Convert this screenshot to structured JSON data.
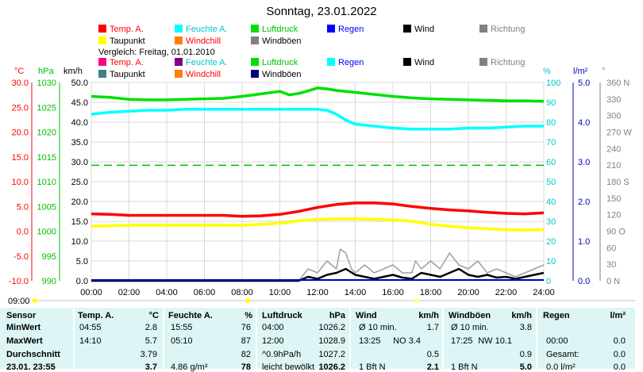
{
  "title": "Sonntag, 23.01.2022",
  "legend_top": [
    {
      "label": "Temp. A.",
      "color": "#ff0000",
      "text_color": "#ff0000"
    },
    {
      "label": "Feuchte A.",
      "color": "#00ffff",
      "text_color": "#00c8c8"
    },
    {
      "label": "Luftdruck",
      "color": "#00e000",
      "text_color": "#00c000"
    },
    {
      "label": "Regen",
      "color": "#0000ff",
      "text_color": "#0000ff"
    },
    {
      "label": "Wind",
      "color": "#000000",
      "text_color": "#000000"
    },
    {
      "label": "Richtung",
      "color": "#808080",
      "text_color": "#808080"
    },
    {
      "label": "Taupunkt",
      "color": "#ffff00",
      "text_color": "#000000"
    },
    {
      "label": "Windchill",
      "color": "#ff8000",
      "text_color": "#ff0000"
    },
    {
      "label": "Windböen",
      "color": "#808080",
      "text_color": "#000000"
    }
  ],
  "compare_label": "Vergleich: Freitag, 01.01.2010",
  "legend_compare": [
    {
      "label": "Temp. A.",
      "color": "#ff0080",
      "text_color": "#ff0000"
    },
    {
      "label": "Feuchte A.",
      "color": "#800080",
      "text_color": "#00c8c8"
    },
    {
      "label": "Luftdruck",
      "color": "#00e000",
      "text_color": "#00c000"
    },
    {
      "label": "Regen",
      "color": "#00ffff",
      "text_color": "#0000ff"
    },
    {
      "label": "Wind",
      "color": "#000000",
      "text_color": "#000000"
    },
    {
      "label": "Richtung",
      "color": "#808080",
      "text_color": "#808080"
    },
    {
      "label": "Taupunkt",
      "color": "#408080",
      "text_color": "#000000"
    },
    {
      "label": "Windchill",
      "color": "#ff8000",
      "text_color": "#ff0000"
    },
    {
      "label": "Windböen",
      "color": "#000080",
      "text_color": "#000000"
    }
  ],
  "axis_units": {
    "temp": "°C",
    "press": "hPa",
    "wind": "km/h",
    "hum": "%",
    "rain": "l/m²",
    "dir": "°"
  },
  "timeline_label": "09:00",
  "chart_data": {
    "type": "line",
    "x_ticks": [
      "00:00",
      "02:00",
      "04:00",
      "06:00",
      "08:00",
      "10:00",
      "12:00",
      "14:00",
      "16:00",
      "18:00",
      "20:00",
      "22:00",
      "24:00"
    ],
    "xlim": [
      0,
      24
    ],
    "axes": {
      "temp": {
        "ticks": [
          "30.0",
          "25.0",
          "20.0",
          "15.0",
          "10.0",
          "5.0",
          "0.0",
          "-5.0",
          "-10.0"
        ],
        "ylim": [
          -10,
          30
        ]
      },
      "press": {
        "ticks": [
          "1030",
          "1025",
          "1020",
          "1015",
          "1010",
          "1005",
          "1000",
          "995",
          "990"
        ],
        "ylim": [
          990,
          1030
        ]
      },
      "wind": {
        "ticks": [
          "50.0",
          "45.0",
          "40.0",
          "35.0",
          "30.0",
          "25.0",
          "20.0",
          "15.0",
          "10.0",
          "5.0",
          "0.0"
        ],
        "ylim": [
          0,
          50
        ]
      },
      "hum": {
        "ticks": [
          "100",
          "90",
          "80",
          "70",
          "60",
          "50",
          "40",
          "30",
          "20",
          "10",
          "0"
        ],
        "ylim": [
          0,
          100
        ]
      },
      "rain": {
        "ticks": [
          "5.0",
          "4.0",
          "3.0",
          "2.0",
          "1.0",
          "0.0"
        ],
        "ylim": [
          0,
          5
        ]
      },
      "dir": {
        "ticks": [
          "360 N",
          "330",
          "300",
          "270 W",
          "240",
          "210",
          "180 S",
          "150",
          "120",
          "90 O",
          "60",
          "30",
          "0 N"
        ],
        "ylim": [
          0,
          360
        ]
      }
    },
    "series": [
      {
        "name": "Luftdruck",
        "axis": "press",
        "color": "#00e000",
        "x": [
          0,
          1,
          2,
          3,
          4,
          5,
          6,
          7,
          8,
          9,
          10,
          10.5,
          11,
          11.5,
          12,
          12.5,
          13,
          14,
          15,
          16,
          17,
          18,
          19,
          20,
          21,
          22,
          23,
          24
        ],
        "y": [
          1027.2,
          1027.0,
          1026.6,
          1026.5,
          1026.5,
          1026.6,
          1026.7,
          1026.8,
          1027.2,
          1027.7,
          1028.2,
          1027.5,
          1027.8,
          1028.3,
          1028.9,
          1028.7,
          1028.4,
          1028.0,
          1027.6,
          1027.2,
          1026.9,
          1026.7,
          1026.6,
          1026.5,
          1026.4,
          1026.3,
          1026.3,
          1026.2
        ]
      },
      {
        "name": "Feuchte A.",
        "axis": "hum",
        "color": "#00ffff",
        "x": [
          0,
          1,
          2,
          3,
          4,
          5,
          6,
          7,
          8,
          9,
          10,
          11,
          12,
          12.5,
          13,
          13.5,
          14,
          15,
          16,
          17,
          18,
          19,
          20,
          21,
          22,
          23,
          24
        ],
        "y": [
          84,
          85,
          85.5,
          86,
          86,
          86.5,
          86.5,
          86.5,
          86.5,
          86.5,
          86.5,
          86.5,
          86.5,
          86,
          84,
          81,
          79,
          78,
          77,
          76.5,
          76.5,
          76.5,
          77,
          77,
          77.5,
          78,
          78
        ]
      },
      {
        "name": "Temp. A.",
        "axis": "temp",
        "color": "#ff0000",
        "x": [
          0,
          1,
          2,
          3,
          4,
          5,
          6,
          7,
          8,
          9,
          10,
          11,
          12,
          13,
          14,
          15,
          16,
          17,
          18,
          19,
          20,
          21,
          22,
          23,
          24
        ],
        "y": [
          3.5,
          3.4,
          3.2,
          3.2,
          3.2,
          3.2,
          3.2,
          3.2,
          3.0,
          3.1,
          3.4,
          4.0,
          4.8,
          5.4,
          5.7,
          5.7,
          5.5,
          5.0,
          4.6,
          4.3,
          4.1,
          3.8,
          3.6,
          3.5,
          3.7
        ]
      },
      {
        "name": "Taupunkt",
        "axis": "temp",
        "color": "#ffff00",
        "x": [
          0,
          1,
          2,
          3,
          4,
          5,
          6,
          7,
          8,
          9,
          10,
          11,
          12,
          13,
          14,
          15,
          16,
          17,
          18,
          19,
          20,
          21,
          22,
          23,
          24
        ],
        "y": [
          1.0,
          1.1,
          1.2,
          1.2,
          1.2,
          1.2,
          1.2,
          1.2,
          1.2,
          1.4,
          1.6,
          2.1,
          2.4,
          2.5,
          2.5,
          2.4,
          2.3,
          2.0,
          1.4,
          1.0,
          0.7,
          0.5,
          0.3,
          0.2,
          0.3
        ]
      },
      {
        "name": "Windböen",
        "axis": "wind",
        "color": "#a0a0a0",
        "x": [
          0,
          11,
          11.5,
          12,
          12.5,
          13,
          13.2,
          13.5,
          13.8,
          14,
          14.5,
          15,
          15.5,
          16,
          16.5,
          17,
          17.2,
          17.5,
          18,
          18.5,
          19,
          19.5,
          20,
          20.5,
          21,
          21.5,
          22,
          22.5,
          23,
          23.5,
          24
        ],
        "y": [
          0,
          0,
          3,
          2,
          5,
          3,
          8,
          7,
          3,
          2,
          4,
          2,
          3,
          4,
          2,
          2,
          5,
          3,
          5,
          3,
          7,
          4,
          3,
          5,
          2,
          3,
          2,
          1,
          2,
          3,
          4
        ]
      },
      {
        "name": "Wind",
        "axis": "wind",
        "color": "#000000",
        "x": [
          0,
          11,
          11.5,
          12,
          12.5,
          13,
          13.5,
          14,
          14.5,
          15,
          15.5,
          16,
          16.5,
          17,
          17.5,
          18,
          18.5,
          19,
          19.5,
          20,
          20.5,
          21,
          21.5,
          22,
          22.5,
          23,
          23.5,
          24
        ],
        "y": [
          0,
          0,
          1,
          0.5,
          1.5,
          2,
          3,
          1.5,
          1,
          0.5,
          1,
          1.5,
          0.8,
          0.5,
          2,
          1.5,
          1,
          2,
          3,
          1.5,
          1,
          1.5,
          0.8,
          1,
          0.5,
          1,
          1.5,
          2
        ]
      }
    ],
    "reference_line": {
      "name": "Luftdruck Vergleich",
      "axis": "press",
      "y": 1013.3,
      "color": "#00c000"
    }
  },
  "stats": {
    "headers": {
      "sensor": "Sensor",
      "temp": "Temp. A.",
      "temp_unit": "°C",
      "hum": "Feuchte A.",
      "hum_unit": "%",
      "press": "Luftdruck",
      "press_unit": "hPa",
      "wind": "Wind",
      "wind_unit": "km/h",
      "gust": "Windböen",
      "gust_unit": "km/h",
      "rain": "Regen",
      "rain_unit": "l/m²"
    },
    "row_labels": [
      "MinWert",
      "MaxWert",
      "Durchschnitt",
      "23.01. 23:55"
    ],
    "temp": [
      [
        "04:55",
        "2.8"
      ],
      [
        "14:10",
        "5.7"
      ],
      [
        "",
        "3.79"
      ],
      [
        "",
        "3.7"
      ]
    ],
    "hum": [
      [
        "15:55",
        "76"
      ],
      [
        "05:10",
        "87"
      ],
      [
        "",
        "82"
      ],
      [
        "4.86 g/m³",
        "78"
      ]
    ],
    "press": [
      [
        "04:00",
        "1026.2"
      ],
      [
        "12:00",
        "1028.9"
      ],
      [
        "^0.9hPa/h",
        "1027.2"
      ],
      [
        "leicht bewölkt",
        "1026.2"
      ]
    ],
    "wind": [
      [
        "Ø 10 min.",
        "",
        "1.7"
      ],
      [
        "13:25",
        "NO 3.4",
        ""
      ],
      [
        "",
        "",
        "0.5"
      ],
      [
        "1 Bft N",
        "",
        "2.1"
      ]
    ],
    "gust": [
      [
        "Ø 10 min.",
        "",
        "3.8"
      ],
      [
        "17:25",
        "NW 10.1",
        ""
      ],
      [
        "",
        "",
        "0.9"
      ],
      [
        "1 Bft N",
        "",
        "5.0"
      ]
    ],
    "rain": [
      [
        "",
        "",
        ""
      ],
      [
        "00:00",
        "",
        "0.0"
      ],
      [
        "Gesamt:",
        "",
        "0.0"
      ],
      [
        "0.0 l/m²",
        "",
        "0.0"
      ]
    ]
  }
}
